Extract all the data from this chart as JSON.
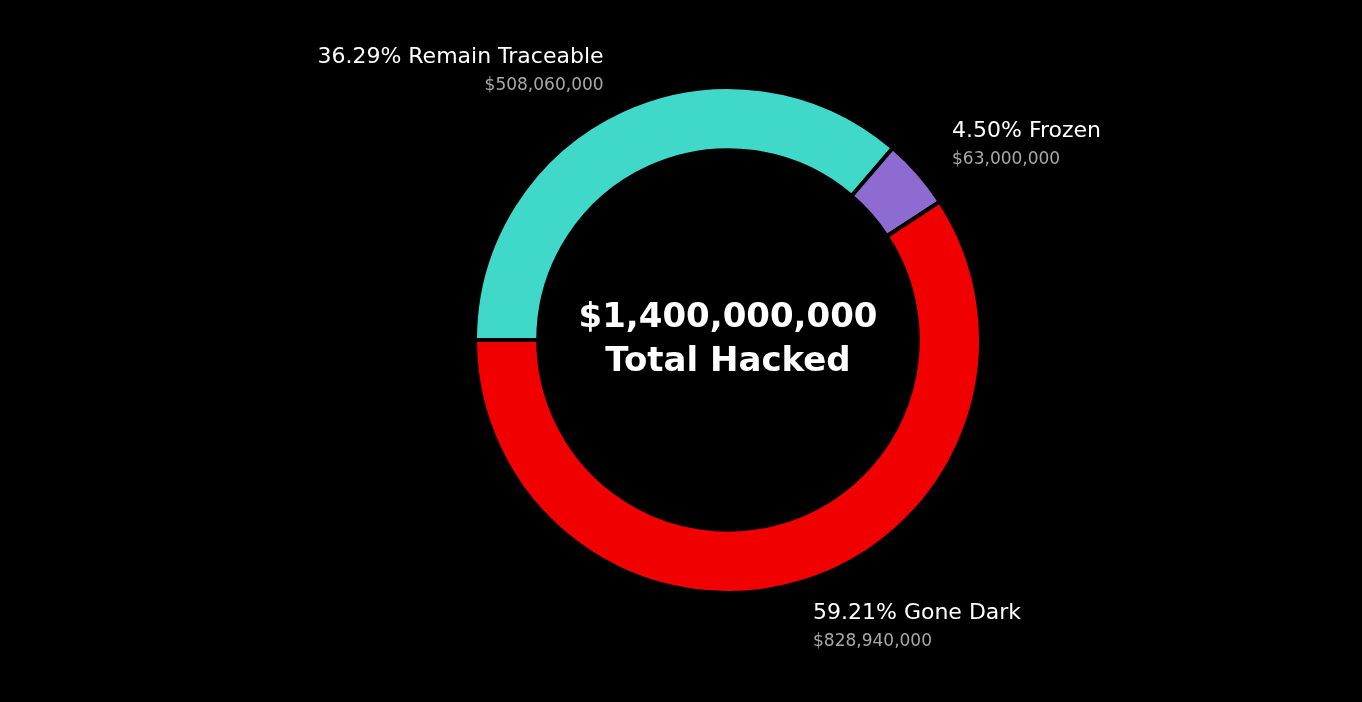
{
  "chart_data": {
    "type": "donut",
    "categories": [
      "36.29% Remain Traceable",
      "4.50% Frozen",
      "59.21% Gone Dark"
    ],
    "values": [
      508060000,
      63000000,
      828940000
    ],
    "value_labels": [
      "$508,060,000",
      "$63,000,000",
      "$828,940,000"
    ],
    "colors": [
      "#40d9c9",
      "#8e6bd0",
      "#f00000"
    ],
    "annotations": [
      "$1,400,000,000",
      "Total Hacked"
    ],
    "legend": false
  }
}
